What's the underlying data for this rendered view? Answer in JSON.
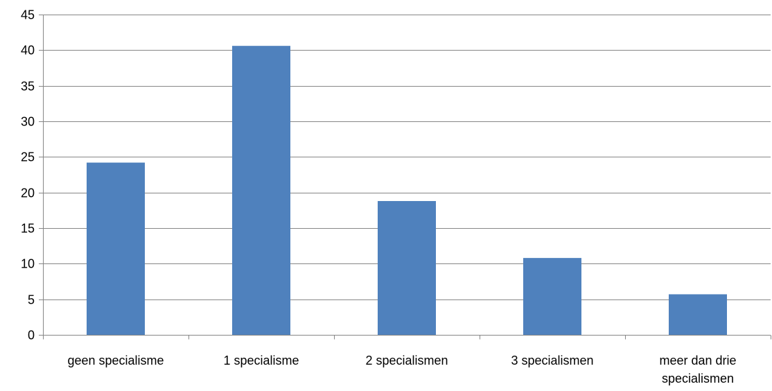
{
  "chart_data": {
    "type": "bar",
    "title": "",
    "xlabel": "",
    "ylabel": "",
    "categories": [
      [
        "geen specialisme"
      ],
      [
        "1 specialisme"
      ],
      [
        "2 specialismen"
      ],
      [
        "3 specialismen"
      ],
      [
        "meer dan drie",
        "specialismen"
      ]
    ],
    "values": [
      24.2,
      40.6,
      18.8,
      10.8,
      5.7
    ],
    "ylim": [
      0,
      45
    ],
    "yticks": [
      0,
      5,
      10,
      15,
      20,
      25,
      30,
      35,
      40,
      45
    ],
    "grid": true,
    "legend": "none",
    "bar_color": "#4F81BD",
    "grid_color": "#868686"
  }
}
